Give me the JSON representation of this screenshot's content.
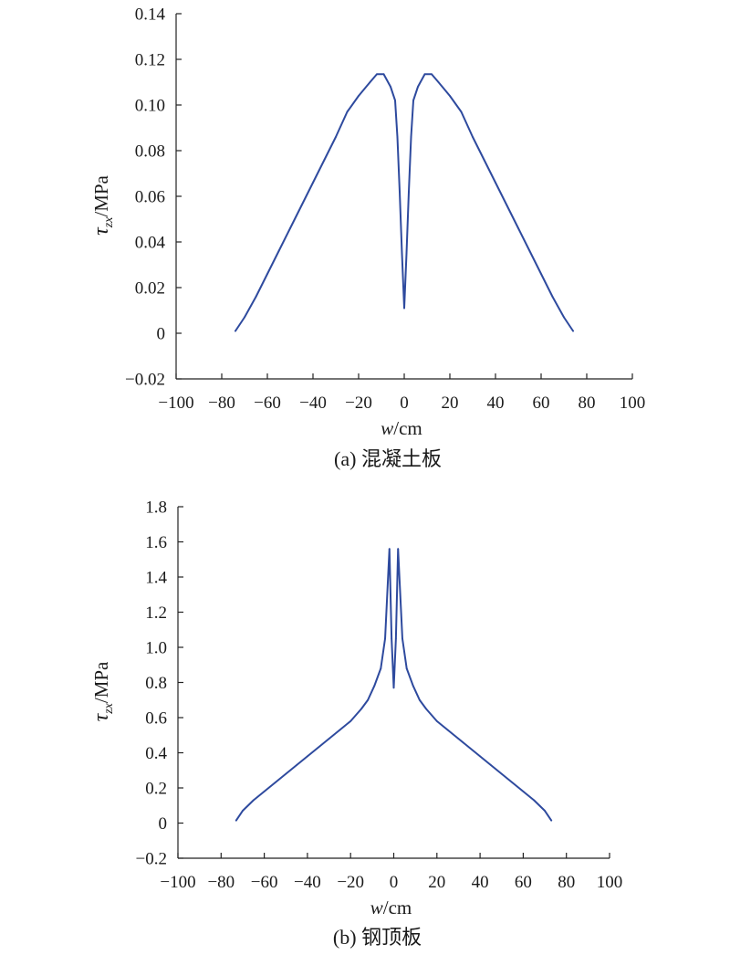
{
  "chart_data": [
    {
      "type": "line",
      "caption": "(a) 混凝土板",
      "xlabel_main": "w",
      "xlabel_unit": "/cm",
      "ylabel_main": "τ",
      "ylabel_sub": "zx",
      "ylabel_unit": "/MPa",
      "xlim": [
        -100,
        100
      ],
      "ylim": [
        -0.02,
        0.14
      ],
      "xticks": [
        -100,
        -80,
        -60,
        -40,
        -20,
        0,
        20,
        40,
        60,
        80,
        100
      ],
      "xtick_labels": [
        "−100",
        "−80",
        "−60",
        "−40",
        "−20",
        "0",
        "20",
        "40",
        "60",
        "80",
        "100"
      ],
      "yticks": [
        -0.02,
        0,
        0.02,
        0.04,
        0.06,
        0.08,
        0.1,
        0.12,
        0.14
      ],
      "ytick_labels": [
        "−0.02",
        "0",
        "0.02",
        "0.04",
        "0.06",
        "0.08",
        "0.10",
        "0.12",
        "0.14"
      ],
      "grid": false,
      "color": "#2e4a9e",
      "series": [
        {
          "x": [
            -74,
            -70,
            -65,
            -60,
            -55,
            -50,
            -45,
            -40,
            -35,
            -30,
            -25,
            -20,
            -15,
            -12,
            -9,
            -6,
            -4,
            -3,
            -2,
            -1,
            0,
            1,
            2,
            3,
            4,
            6,
            9,
            12,
            15,
            20,
            25,
            30,
            35,
            40,
            45,
            50,
            55,
            60,
            65,
            70,
            74
          ],
          "y": [
            0.001,
            0.007,
            0.016,
            0.026,
            0.036,
            0.046,
            0.056,
            0.066,
            0.076,
            0.086,
            0.097,
            0.104,
            0.11,
            0.1135,
            0.1135,
            0.108,
            0.102,
            0.086,
            0.062,
            0.035,
            0.011,
            0.035,
            0.062,
            0.086,
            0.102,
            0.108,
            0.1135,
            0.1135,
            0.11,
            0.104,
            0.097,
            0.086,
            0.076,
            0.066,
            0.056,
            0.046,
            0.036,
            0.026,
            0.016,
            0.007,
            0.001
          ]
        }
      ]
    },
    {
      "type": "line",
      "caption": "(b) 钢顶板",
      "xlabel_main": "w",
      "xlabel_unit": "/cm",
      "ylabel_main": "τ",
      "ylabel_sub": "zx",
      "ylabel_unit": "/MPa",
      "xlim": [
        -100,
        100
      ],
      "ylim": [
        -0.2,
        1.8
      ],
      "xticks": [
        -100,
        -80,
        -60,
        -40,
        -20,
        0,
        20,
        40,
        60,
        80,
        100
      ],
      "xtick_labels": [
        "−100",
        "−80",
        "−60",
        "−40",
        "−20",
        "0",
        "20",
        "40",
        "60",
        "80",
        "100"
      ],
      "yticks": [
        -0.2,
        0,
        0.2,
        0.4,
        0.6,
        0.8,
        1.0,
        1.2,
        1.4,
        1.6,
        1.8
      ],
      "ytick_labels": [
        "−0.2",
        "0",
        "0.2",
        "0.4",
        "0.6",
        "0.8",
        "1.0",
        "1.2",
        "1.4",
        "1.6",
        "1.8"
      ],
      "grid": false,
      "color": "#2e4a9e",
      "series": [
        {
          "x": [
            -73,
            -70,
            -65,
            -60,
            -55,
            -50,
            -45,
            -40,
            -35,
            -30,
            -25,
            -20,
            -15,
            -12,
            -9,
            -6,
            -4,
            -2,
            -1,
            0,
            1,
            2,
            4,
            6,
            9,
            12,
            15,
            20,
            25,
            30,
            35,
            40,
            45,
            50,
            55,
            60,
            65,
            70,
            73
          ],
          "y": [
            0.015,
            0.07,
            0.13,
            0.18,
            0.23,
            0.28,
            0.33,
            0.38,
            0.43,
            0.48,
            0.53,
            0.58,
            0.65,
            0.7,
            0.78,
            0.88,
            1.05,
            1.56,
            1.05,
            0.77,
            1.05,
            1.56,
            1.05,
            0.88,
            0.78,
            0.7,
            0.65,
            0.58,
            0.53,
            0.48,
            0.43,
            0.38,
            0.33,
            0.28,
            0.23,
            0.18,
            0.13,
            0.07,
            0.015
          ]
        }
      ]
    }
  ]
}
